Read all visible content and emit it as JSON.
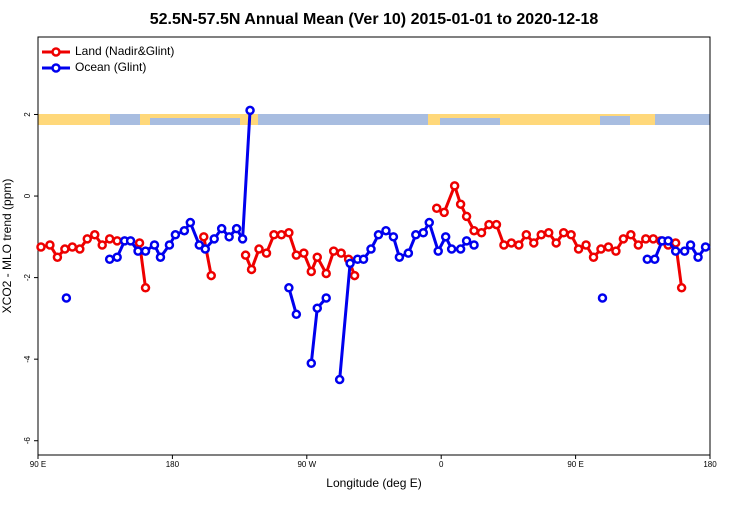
{
  "chart_data": {
    "type": "line",
    "title": "52.5N-57.5N Annual Mean (Ver 10)   2015-01-01 to 2020-12-18",
    "x_label": "Longitude (deg E)",
    "y_label": "XCO2 - MLO trend (ppm)",
    "xlim": [
      90,
      540
    ],
    "ylim": [
      -6.35,
      3.9
    ],
    "xticks": [
      {
        "value": 90,
        "label": "90 E"
      },
      {
        "value": 180,
        "label": "180"
      },
      {
        "value": 270,
        "label": "90 W"
      },
      {
        "value": 360,
        "label": "0"
      },
      {
        "value": 450,
        "label": "90 E"
      },
      {
        "value": 540,
        "label": "180"
      }
    ],
    "yticks": [
      2,
      0,
      -2,
      -4,
      -6
    ],
    "legend": "top-left",
    "series": [
      {
        "name": "Land (Nadir&Glint)",
        "color": "#ee0000",
        "x": [
          92,
          98,
          103,
          108,
          113,
          118,
          123,
          128,
          133,
          138,
          143,
          150,
          158,
          162,
          180,
          201,
          206,
          218,
          229,
          233,
          238,
          243,
          248,
          253,
          258,
          263,
          268,
          273,
          277,
          283,
          288,
          293,
          298,
          302,
          330,
          357,
          362,
          369,
          373,
          377,
          382,
          387,
          392,
          397,
          402,
          407,
          412,
          417,
          422,
          427,
          432,
          437,
          442,
          447,
          452,
          457,
          462,
          467,
          472,
          477,
          482,
          487,
          492,
          497,
          502,
          507,
          512,
          517,
          521
        ],
        "values": [
          -1.25,
          -1.2,
          -1.5,
          -1.3,
          -1.25,
          -1.3,
          -1.05,
          -0.95,
          -1.2,
          -1.05,
          -1.1,
          null,
          -1.15,
          -2.25,
          null,
          -1.0,
          -1.95,
          null,
          -1.45,
          -1.8,
          -1.3,
          -1.4,
          -0.95,
          -0.95,
          -0.9,
          -1.45,
          -1.4,
          -1.85,
          -1.5,
          -1.9,
          -1.35,
          -1.4,
          -1.55,
          -1.95,
          null,
          -0.3,
          -0.4,
          0.25,
          -0.2,
          -0.5,
          -0.85,
          -0.9,
          -0.7,
          -0.7,
          -1.2,
          -1.15,
          -1.2,
          -0.95,
          -1.15,
          -0.95,
          -0.9,
          -1.15,
          -0.9,
          -0.95,
          -1.3,
          -1.2,
          -1.5,
          -1.3,
          -1.25,
          -1.35,
          -1.05,
          -0.95,
          -1.2,
          -1.05,
          -1.05,
          -1.1,
          -1.2,
          -1.15,
          -2.25
        ]
      },
      {
        "name": "Ocean (Glint)",
        "color": "#0000ee",
        "x": [
          109,
          120,
          138,
          143,
          148,
          152,
          157,
          162,
          168,
          172,
          178,
          182,
          188,
          192,
          198,
          202,
          208,
          213,
          218,
          223,
          227,
          232,
          245,
          258,
          263,
          268,
          273,
          277,
          283,
          288,
          292,
          299,
          304,
          308,
          313,
          318,
          323,
          328,
          332,
          338,
          343,
          348,
          352,
          358,
          363,
          367,
          373,
          377,
          382,
          420,
          468,
          480,
          498,
          503,
          508,
          512,
          517,
          523,
          527,
          532,
          537
        ],
        "values": [
          -2.5,
          null,
          -1.55,
          -1.5,
          -1.1,
          -1.1,
          -1.35,
          -1.35,
          -1.2,
          -1.5,
          -1.2,
          -0.95,
          -0.85,
          -0.65,
          -1.2,
          -1.3,
          -1.05,
          -0.8,
          -1.0,
          -0.8,
          -1.05,
          2.1,
          null,
          -2.25,
          -2.9,
          null,
          -4.1,
          -2.75,
          -2.5,
          null,
          -4.5,
          -1.65,
          -1.55,
          -1.55,
          -1.3,
          -0.95,
          -0.85,
          -1.0,
          -1.5,
          -1.4,
          -0.95,
          -0.9,
          -0.65,
          -1.35,
          -1.0,
          -1.3,
          -1.3,
          -1.1,
          -1.2,
          null,
          -2.5,
          null,
          -1.55,
          -1.55,
          -1.1,
          -1.1,
          -1.35,
          -1.35,
          -1.2,
          -1.5,
          -1.25
        ]
      }
    ]
  }
}
